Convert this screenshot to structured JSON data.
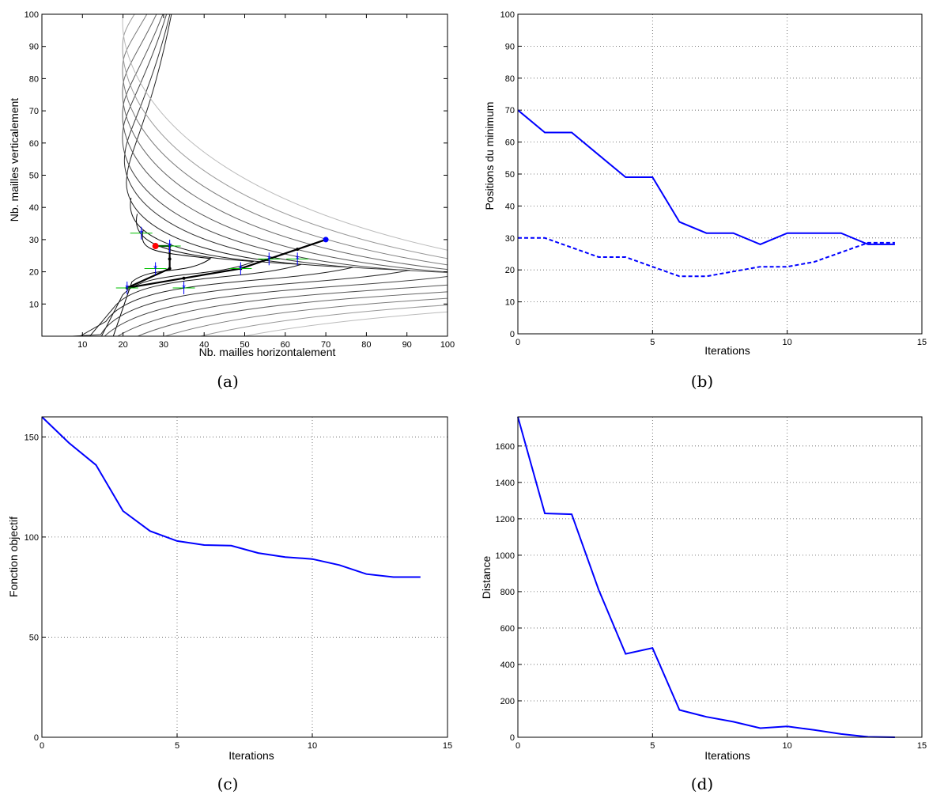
{
  "chart_data": [
    {
      "id": "a",
      "type": "scatter",
      "subtype": "contour with optimisation path",
      "caption": "(a)",
      "xlabel": "Nb. mailles horizontalement",
      "ylabel": "Nb. mailles verticalement",
      "xlim": [
        0,
        100
      ],
      "ylim": [
        0,
        100
      ],
      "xticks": [
        10,
        20,
        30,
        40,
        50,
        60,
        70,
        80,
        90,
        100
      ],
      "yticks": [
        10,
        20,
        30,
        40,
        50,
        60,
        70,
        80,
        90,
        100
      ],
      "grid": false,
      "contour_tips": [
        {
          "x": 25,
          "y": 33
        },
        {
          "x": 23.5,
          "y": 38
        },
        {
          "x": 22,
          "y": 43
        },
        {
          "x": 21,
          "y": 50
        },
        {
          "x": 20.5,
          "y": 57
        },
        {
          "x": 20,
          "y": 64
        },
        {
          "x": 20,
          "y": 71
        },
        {
          "x": 20,
          "y": 78
        },
        {
          "x": 20,
          "y": 85
        },
        {
          "x": 20,
          "y": 92
        },
        {
          "x": 20,
          "y": 100
        }
      ],
      "path": {
        "x": [
          70,
          63,
          49,
          35,
          21,
          31.5,
          31.5,
          31.5,
          28,
          28
        ],
        "y": [
          30,
          27,
          21,
          18,
          15,
          21,
          24,
          28,
          28,
          28
        ]
      },
      "probes": {
        "x": [
          63,
          56,
          49,
          35,
          21,
          28,
          31.5,
          24.5,
          31.5
        ],
        "y": [
          24,
          24,
          21,
          15,
          15,
          21,
          28,
          32,
          28
        ]
      },
      "colors": {
        "path": "#000000",
        "probe": "#0000ff",
        "bracket": "#00c000",
        "start": "#0000ff",
        "end": "#ff0000"
      }
    },
    {
      "id": "b",
      "type": "line",
      "caption": "(b)",
      "xlabel": "Iterations",
      "ylabel": "Positions du minimum",
      "xlim": [
        0,
        15
      ],
      "ylim": [
        0,
        100
      ],
      "xticks": [
        0,
        5,
        10,
        15
      ],
      "yticks": [
        0,
        10,
        20,
        30,
        40,
        50,
        60,
        70,
        80,
        90,
        100
      ],
      "grid": true,
      "x": [
        0,
        1,
        2,
        3,
        4,
        5,
        6,
        7,
        8,
        9,
        10,
        11,
        12,
        13,
        14
      ],
      "series": [
        {
          "style": "solid",
          "color": "#0000ff",
          "values": [
            70,
            63,
            63,
            56,
            49,
            49,
            35,
            31.5,
            31.5,
            28,
            31.5,
            31.5,
            31.5,
            28,
            28
          ]
        },
        {
          "style": "dashed",
          "color": "#0000ff",
          "values": [
            30,
            30,
            27,
            24,
            24,
            21,
            18,
            18,
            19.5,
            21,
            21,
            22.5,
            25.5,
            28.5,
            28.5
          ]
        }
      ]
    },
    {
      "id": "c",
      "type": "line",
      "caption": "(c)",
      "xlabel": "Iterations",
      "ylabel": "Fonction objectif",
      "xlim": [
        0,
        15
      ],
      "ylim": [
        0,
        160
      ],
      "xticks": [
        0,
        5,
        10,
        15
      ],
      "yticks": [
        0,
        50,
        100,
        150
      ],
      "grid": true,
      "x": [
        0,
        1,
        2,
        3,
        4,
        5,
        6,
        7,
        8,
        9,
        10,
        11,
        12,
        13,
        14
      ],
      "series": [
        {
          "style": "solid",
          "color": "#0000ff",
          "values": [
            160,
            147,
            136,
            113,
            103,
            98,
            96,
            95.7,
            92,
            90,
            89,
            86,
            81.5,
            80,
            80
          ]
        }
      ]
    },
    {
      "id": "d",
      "type": "line",
      "caption": "(d)",
      "xlabel": "Iterations",
      "ylabel": "Distance",
      "xlim": [
        0,
        15
      ],
      "ylim": [
        0,
        1760
      ],
      "xticks": [
        0,
        5,
        10,
        15
      ],
      "yticks": [
        0,
        200,
        400,
        600,
        800,
        1000,
        1200,
        1400,
        1600
      ],
      "grid": true,
      "x": [
        0,
        1,
        2,
        3,
        4,
        5,
        6,
        7,
        8,
        9,
        10,
        11,
        12,
        13,
        14
      ],
      "series": [
        {
          "style": "solid",
          "color": "#0000ff",
          "values": [
            1760,
            1230,
            1225,
            810,
            458,
            490,
            150,
            112,
            85,
            50,
            60,
            40,
            18,
            2,
            0
          ]
        }
      ]
    }
  ]
}
